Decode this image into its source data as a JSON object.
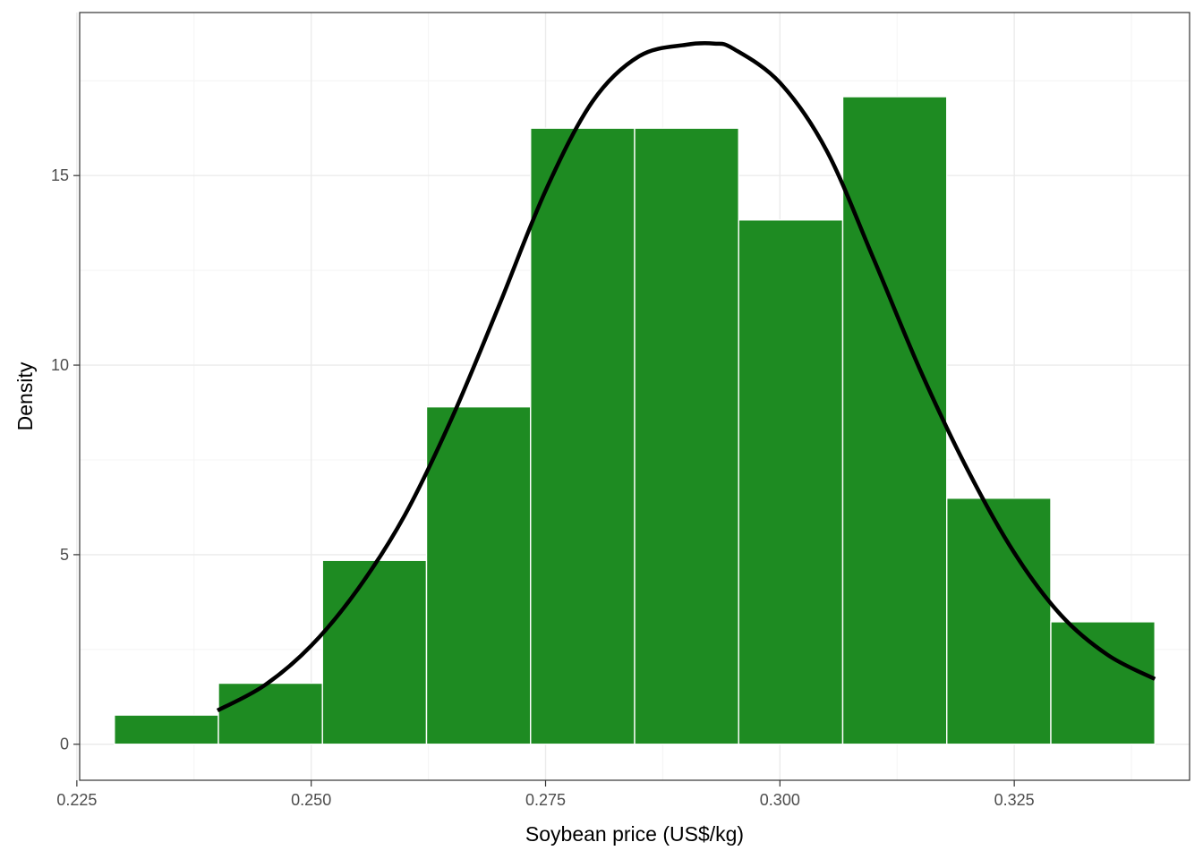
{
  "chart_data": {
    "type": "bar",
    "subtype": "histogram-with-density-curve",
    "title": "",
    "xlabel": "Soybean price (US$/kg)",
    "ylabel": "Density",
    "xlim": [
      0.2253,
      0.3437
    ],
    "ylim": [
      -0.95,
      19.3
    ],
    "x_ticks": [
      0.225,
      0.25,
      0.275,
      0.3,
      0.325
    ],
    "x_tick_labels": [
      "0.225",
      "0.250",
      "0.275",
      "0.300",
      "0.325"
    ],
    "x_minor_ticks": [
      0.2375,
      0.2625,
      0.2875,
      0.3125,
      0.3375
    ],
    "y_ticks": [
      0,
      5,
      10,
      15
    ],
    "y_tick_labels": [
      "0",
      "5",
      "10",
      "15"
    ],
    "y_minor_ticks": [
      2.5,
      7.5,
      12.5,
      17.5
    ],
    "grid": true,
    "legend": "none",
    "bin_width": 0.0111,
    "bins": [
      {
        "start": 0.229,
        "end": 0.2401,
        "density": 0.77
      },
      {
        "start": 0.2401,
        "end": 0.2512,
        "density": 1.61
      },
      {
        "start": 0.2512,
        "end": 0.2623,
        "density": 4.85
      },
      {
        "start": 0.2623,
        "end": 0.2734,
        "density": 8.9
      },
      {
        "start": 0.2734,
        "end": 0.2845,
        "density": 16.25
      },
      {
        "start": 0.2845,
        "end": 0.2956,
        "density": 16.25
      },
      {
        "start": 0.2956,
        "end": 0.3067,
        "density": 13.83
      },
      {
        "start": 0.3067,
        "end": 0.3178,
        "density": 17.08
      },
      {
        "start": 0.3178,
        "end": 0.3289,
        "density": 6.49
      },
      {
        "start": 0.3289,
        "end": 0.34,
        "density": 3.23
      }
    ],
    "density_curve": {
      "x": [
        0.24,
        0.245,
        0.25,
        0.255,
        0.26,
        0.265,
        0.27,
        0.275,
        0.28,
        0.285,
        0.29,
        0.293,
        0.295,
        0.3,
        0.305,
        0.31,
        0.315,
        0.32,
        0.325,
        0.33,
        0.335,
        0.34
      ],
      "y": [
        0.89,
        1.55,
        2.6,
        4.1,
        6.05,
        8.6,
        11.55,
        14.6,
        16.95,
        18.15,
        18.45,
        18.48,
        18.35,
        17.45,
        15.65,
        12.8,
        9.85,
        7.25,
        5.05,
        3.4,
        2.35,
        1.72
      ]
    },
    "colors": {
      "bar_fill": "#1e8b22",
      "bar_outline": "#ffffff",
      "curve": "#000000",
      "panel_border": "#333333",
      "grid_major": "#ebebeb",
      "grid_minor": "#f4f4f4",
      "tick_label": "#4d4d4d",
      "axis_title": "#000000"
    }
  }
}
